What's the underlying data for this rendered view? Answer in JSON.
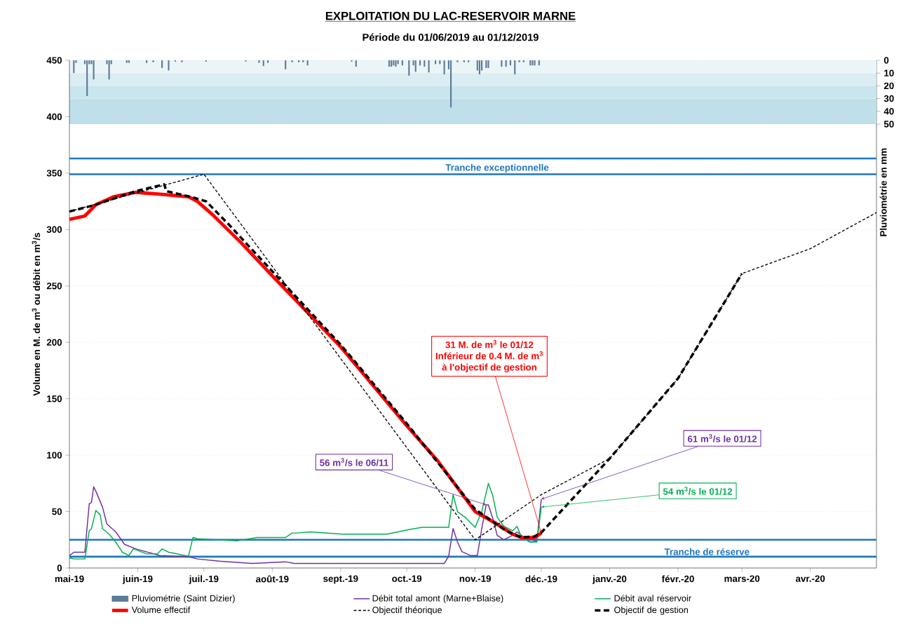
{
  "chart_data": {
    "type": "line",
    "title": "EXPLOITATION DU LAC-RESERVOIR MARNE",
    "subtitle": "Période du 01/06/2019 au 01/12/2019",
    "ylabel": "Volume en M. de m$^{3}$ ou débit en m$^{3}$/s",
    "y2label": "Pluviométrie en mm",
    "xlim": [
      "2019-05-01",
      "2020-05-01"
    ],
    "xticks": [
      {
        "value": "2019-05-01",
        "label": "mai-19"
      },
      {
        "value": "2019-06-01",
        "label": "juin-19"
      },
      {
        "value": "2019-07-01",
        "label": "juil.-19"
      },
      {
        "value": "2019-08-01",
        "label": "août-19"
      },
      {
        "value": "2019-09-01",
        "label": "sept.-19"
      },
      {
        "value": "2019-10-01",
        "label": "oct.-19"
      },
      {
        "value": "2019-11-01",
        "label": "nov.-19"
      },
      {
        "value": "2019-12-01",
        "label": "déc.-19"
      },
      {
        "value": "2020-01-01",
        "label": "janv.-20"
      },
      {
        "value": "2020-02-01",
        "label": "févr.-20"
      },
      {
        "value": "2020-03-01",
        "label": "mars-20"
      },
      {
        "value": "2020-04-01",
        "label": "avr.-20"
      }
    ],
    "ylim": [
      0,
      450
    ],
    "yticks": [
      0,
      50,
      100,
      150,
      200,
      250,
      300,
      350,
      400,
      450
    ],
    "y2lim": [
      398,
      0
    ],
    "y2ticks": [
      0,
      10,
      20,
      30,
      40,
      50
    ],
    "grid": "y",
    "legend": "bottom",
    "series": [
      {
        "name": "Pluviométrie (Saint Dizier)",
        "type": "bar",
        "axis": "y2",
        "color": "#5d7b98",
        "x": [
          "2019-05-03",
          "2019-05-04",
          "2019-05-08",
          "2019-05-09",
          "2019-05-10",
          "2019-05-11",
          "2019-05-12",
          "2019-05-18",
          "2019-05-19",
          "2019-05-20",
          "2019-05-27",
          "2019-05-28",
          "2019-06-05",
          "2019-06-08",
          "2019-06-12",
          "2019-06-15",
          "2019-06-18",
          "2019-06-21",
          "2019-07-02",
          "2019-07-20",
          "2019-07-26",
          "2019-07-28",
          "2019-07-30",
          "2019-08-07",
          "2019-08-10",
          "2019-08-13",
          "2019-08-15",
          "2019-08-17",
          "2019-09-06",
          "2019-09-08",
          "2019-09-23",
          "2019-09-24",
          "2019-09-25",
          "2019-09-26",
          "2019-09-27",
          "2019-09-29",
          "2019-10-02",
          "2019-10-04",
          "2019-10-05",
          "2019-10-07",
          "2019-10-09",
          "2019-10-11",
          "2019-10-14",
          "2019-10-16",
          "2019-10-18",
          "2019-10-20",
          "2019-10-21",
          "2019-10-24",
          "2019-10-27",
          "2019-10-29",
          "2019-11-02",
          "2019-11-03",
          "2019-11-04",
          "2019-11-06",
          "2019-11-07",
          "2019-11-13",
          "2019-11-15",
          "2019-11-17",
          "2019-11-19",
          "2019-11-21",
          "2019-11-23",
          "2019-11-26",
          "2019-11-27",
          "2019-11-28",
          "2019-11-30"
        ],
        "values": [
          10,
          2,
          3,
          28,
          3,
          3,
          15,
          3,
          15,
          3,
          2,
          2,
          2,
          1.5,
          6,
          8,
          1,
          1.5,
          1,
          1,
          2,
          4.5,
          2,
          7,
          1.5,
          1.5,
          1.5,
          4,
          1,
          5,
          5,
          5,
          4,
          5,
          3,
          4,
          12,
          4,
          9,
          4,
          5,
          9.5,
          3,
          3,
          11,
          7,
          37,
          1.5,
          1.5,
          1.5,
          8,
          11,
          8,
          6,
          6,
          5,
          5,
          4,
          11,
          1.5,
          1.5,
          4,
          4,
          4,
          4
        ]
      },
      {
        "name": "Débit total amont (Marne+Blaise)",
        "color": "#7030a0",
        "x": [
          "2019-05-01",
          "2019-05-03",
          "2019-05-07",
          "2019-05-08",
          "2019-05-10",
          "2019-05-11",
          "2019-05-12",
          "2019-05-13",
          "2019-05-16",
          "2019-05-18",
          "2019-05-22",
          "2019-05-26",
          "2019-05-31",
          "2019-06-11",
          "2019-06-24",
          "2019-06-28",
          "2019-07-08",
          "2019-07-23",
          "2019-08-07",
          "2019-08-11",
          "2019-10-01",
          "2019-10-18",
          "2019-10-20",
          "2019-10-22",
          "2019-10-24",
          "2019-10-26",
          "2019-10-30",
          "2019-11-02",
          "2019-11-04",
          "2019-11-06",
          "2019-11-07",
          "2019-11-09",
          "2019-11-11",
          "2019-11-14",
          "2019-11-18",
          "2019-11-20",
          "2019-11-22",
          "2019-11-24",
          "2019-11-26",
          "2019-11-29",
          "2019-12-01"
        ],
        "values": [
          11,
          14,
          14,
          14,
          57,
          58,
          72,
          68,
          54,
          39,
          32,
          21,
          17,
          11,
          10,
          8,
          6,
          4,
          5.5,
          4,
          4,
          4,
          10.5,
          35,
          23,
          14.5,
          11,
          11,
          35,
          56,
          56,
          44,
          29,
          25,
          29,
          32,
          29,
          25,
          23,
          24,
          61
        ]
      },
      {
        "name": "Débit aval réservoir",
        "color": "#00b050",
        "x": [
          "2019-05-01",
          "2019-05-03",
          "2019-05-08",
          "2019-05-10",
          "2019-05-11",
          "2019-05-13",
          "2019-05-15",
          "2019-05-16",
          "2019-05-19",
          "2019-05-22",
          "2019-05-25",
          "2019-05-28",
          "2019-05-30",
          "2019-06-05",
          "2019-06-10",
          "2019-06-12",
          "2019-06-15",
          "2019-06-24",
          "2019-06-26",
          "2019-06-28",
          "2019-07-16",
          "2019-07-25",
          "2019-08-07",
          "2019-08-10",
          "2019-08-12",
          "2019-08-18",
          "2019-09-02",
          "2019-09-22",
          "2019-10-02",
          "2019-10-08",
          "2019-10-20",
          "2019-10-22",
          "2019-10-24",
          "2019-10-28",
          "2019-11-01",
          "2019-11-04",
          "2019-11-07",
          "2019-11-09",
          "2019-11-11",
          "2019-11-14",
          "2019-11-18",
          "2019-11-20",
          "2019-11-22",
          "2019-11-26",
          "2019-11-29",
          "2019-12-01"
        ],
        "values": [
          9,
          8,
          8,
          33,
          35,
          51,
          47,
          35,
          30,
          23,
          14,
          11,
          17,
          12.5,
          12.5,
          17,
          14,
          10.5,
          27,
          26,
          24,
          27,
          27,
          31,
          31,
          32,
          30,
          30,
          34,
          36,
          36,
          65,
          50,
          44,
          36,
          50,
          75,
          64,
          45,
          37,
          33,
          37,
          27,
          23,
          23,
          54
        ]
      },
      {
        "name": "Volume effectif",
        "color": "#ff0000",
        "x": [
          "2019-05-01",
          "2019-05-08",
          "2019-05-13",
          "2019-05-21",
          "2019-05-31",
          "2019-06-13",
          "2019-06-24",
          "2019-06-28",
          "2019-07-05",
          "2019-07-18",
          "2019-08-01",
          "2019-09-01",
          "2019-10-01",
          "2019-10-15",
          "2019-11-01",
          "2019-11-10",
          "2019-11-18",
          "2019-11-22",
          "2019-11-28",
          "2019-12-01"
        ],
        "values": [
          309,
          312,
          322,
          329,
          333,
          331,
          329,
          325,
          313,
          288,
          259,
          196,
          126,
          95,
          50,
          40,
          30,
          27,
          27,
          31
        ]
      },
      {
        "name": "Objectif théorique",
        "color": "#000000",
        "line_style": "dashed",
        "x": [
          "2019-05-01",
          "2019-07-01",
          "2019-11-01",
          "2019-12-01",
          "2020-01-01",
          "2020-02-01",
          "2020-03-01",
          "2020-04-01",
          "2020-05-01"
        ],
        "values": [
          316,
          349,
          25,
          65,
          97,
          168,
          261,
          283,
          315
        ]
      },
      {
        "name": "Objectif de gestion",
        "color": "#000000",
        "line_style": "dashed",
        "x": [
          "2019-05-01",
          "2019-05-13",
          "2019-05-31",
          "2019-06-13",
          "2019-06-14",
          "2019-06-25",
          "2019-07-02",
          "2019-07-13",
          "2019-07-21",
          "2019-08-01",
          "2019-09-01",
          "2019-10-01",
          "2019-11-01",
          "2019-11-15",
          "2019-11-22",
          "2019-11-28",
          "2019-12-01",
          "2020-01-01",
          "2020-02-01",
          "2020-03-01"
        ],
        "values": [
          316,
          322,
          334,
          340,
          334,
          329,
          325,
          303,
          286,
          263,
          198,
          128,
          52,
          33,
          27,
          28,
          31.4,
          97,
          168,
          261
        ]
      }
    ],
    "ref_lines": [
      {
        "axis": "y",
        "value": 363,
        "color": "#1f77c0"
      },
      {
        "axis": "y",
        "value": 349,
        "label": "Tranche exceptionnelle",
        "color": "#1f77c0"
      },
      {
        "axis": "y",
        "value": 25,
        "color": "#1f77c0"
      },
      {
        "axis": "y",
        "value": 10,
        "label": "Tranche de réserve",
        "color": "#1f77c0"
      }
    ],
    "bands": [
      {
        "axis": "y2",
        "from": 0,
        "to": 10,
        "color": "#ebf5f8"
      },
      {
        "axis": "y2",
        "from": 10,
        "to": 20,
        "color": "#d9edf3"
      },
      {
        "axis": "y2",
        "from": 20,
        "to": 30,
        "color": "#c9e5ee"
      },
      {
        "axis": "y2",
        "from": 30,
        "to": 50,
        "color": "#bfe0ea"
      }
    ],
    "annotations": [
      "31 M. de m$^{3}$ le 01/12",
      "Inférieur de 0.4 M. de m$^{3}$",
      {
        "text": "à l'objectif de gestion",
        "x": "2019-12-01",
        "y": 31
      },
      {
        "text": "56 m$^{3}$/s le 06/11",
        "x": "2019-11-06",
        "y": 56
      },
      {
        "text": "61 m$^{3}$/s le 01/12",
        "x": "2019-12-01",
        "y": 61
      },
      {
        "text": "54 m$^{3}$/s le 01/12",
        "x": "2019-12-01",
        "y": 54
      }
    ]
  }
}
